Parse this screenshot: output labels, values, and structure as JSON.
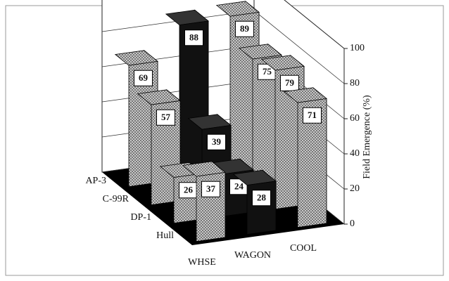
{
  "chart_data": {
    "type": "bar3d",
    "categories": [
      "WHSE",
      "WAGON",
      "COOL"
    ],
    "series": [
      {
        "name": "AP-3",
        "values": [
          69,
          88,
          89
        ]
      },
      {
        "name": "C-99R",
        "values": [
          57,
          39,
          75
        ]
      },
      {
        "name": "DP-1",
        "values": [
          26,
          24,
          79
        ]
      },
      {
        "name": "Hull",
        "values": [
          37,
          28,
          71
        ]
      }
    ],
    "category_colors": [
      "hatch",
      "#111111",
      "hatch"
    ],
    "y_label": "Field Emergence (%)",
    "ylim": [
      0,
      100
    ],
    "yticks": [
      0,
      20,
      40,
      60,
      80,
      100
    ],
    "grid": true
  }
}
